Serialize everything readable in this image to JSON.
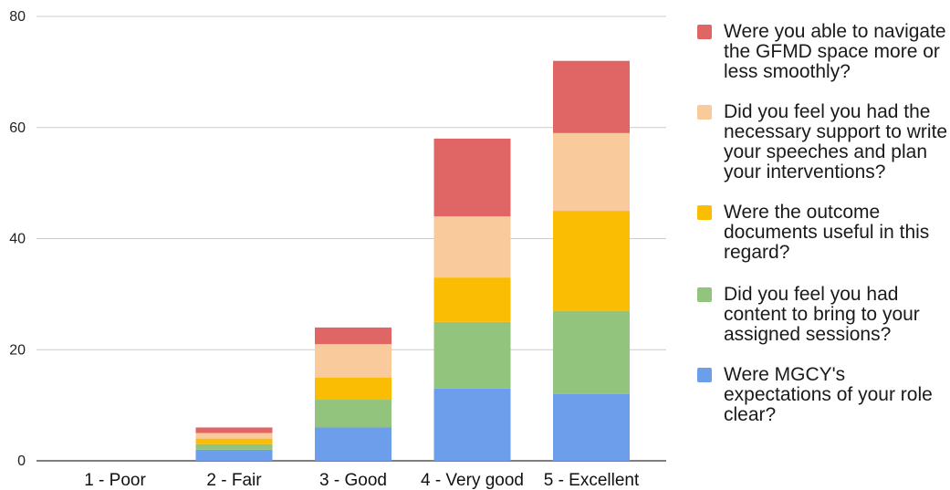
{
  "chart_data": {
    "type": "bar",
    "stacked": true,
    "categories": [
      "1 - Poor",
      "2 - Fair",
      "3 - Good",
      "4 - Very good",
      "5 - Excellent"
    ],
    "series": [
      {
        "name": "Were MGCY's expectations of your role clear?",
        "color": "#6d9eeb",
        "values": [
          0,
          2,
          6,
          13,
          12
        ]
      },
      {
        "name": "Did you feel you had content to bring to your assigned sessions?",
        "color": "#93c47d",
        "values": [
          0,
          1,
          5,
          12,
          15
        ]
      },
      {
        "name": "Were the outcome documents useful in this regard?",
        "color": "#fbbc04",
        "values": [
          0,
          1,
          4,
          8,
          18
        ]
      },
      {
        "name": "Did you feel you had the necessary support to write your speeches and plan  your interventions?",
        "color": "#f9cb9c",
        "values": [
          0,
          1,
          6,
          11,
          14
        ]
      },
      {
        "name": "Were you able to navigate the GFMD space more or less smoothly?",
        "color": "#e06666",
        "values": [
          0,
          1,
          3,
          14,
          13
        ]
      }
    ],
    "legend_order": [
      4,
      3,
      2,
      1,
      0
    ],
    "yticks": [
      "0",
      "20",
      "40",
      "60",
      "80"
    ],
    "ylim": [
      0,
      80
    ],
    "grid": true,
    "legend_position": "right"
  }
}
